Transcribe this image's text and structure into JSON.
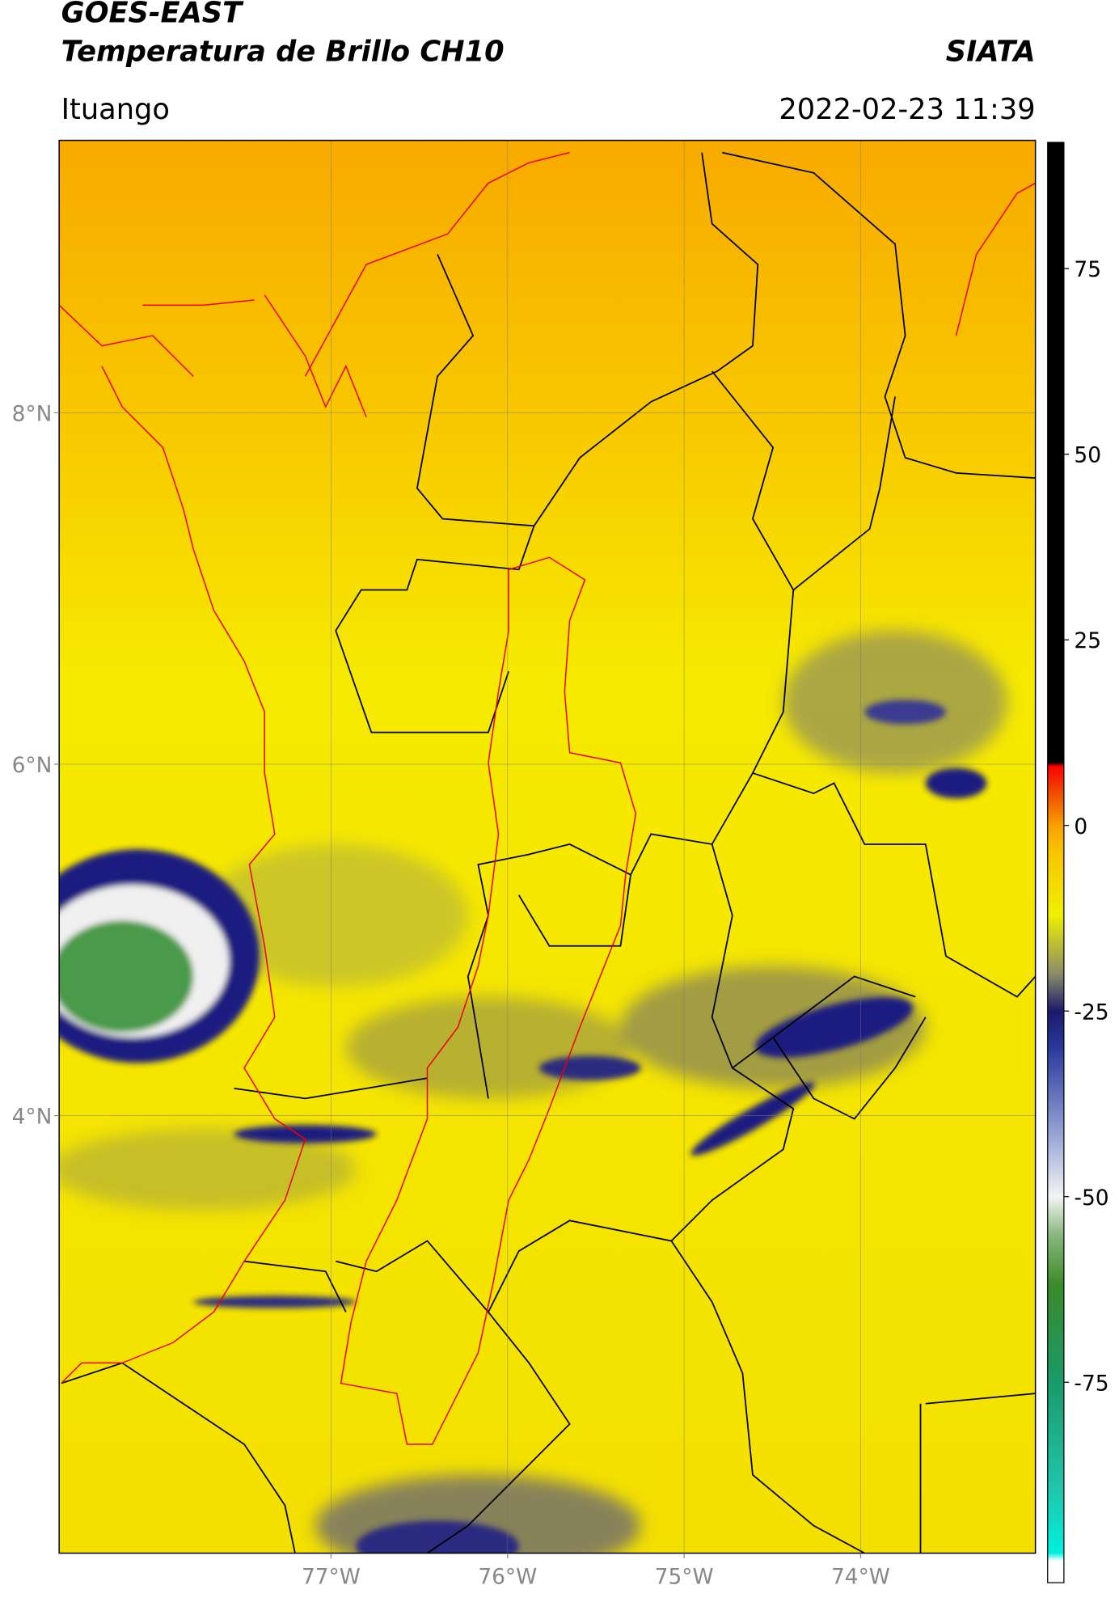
{
  "header": {
    "title": "GOES-EAST",
    "subtitle": "Temperatura de Brillo CH10",
    "brand": "SIATA",
    "region": "Ituango",
    "datetime": "2022-02-23 11:39"
  },
  "map": {
    "xlim": [
      -78.54,
      -73.01
    ],
    "ylim": [
      1.51,
      9.55
    ],
    "xticks": [
      {
        "value": -77,
        "label": "77°W"
      },
      {
        "value": -76,
        "label": "76°W"
      },
      {
        "value": -75,
        "label": "75°W"
      },
      {
        "value": -74,
        "label": "74°W"
      }
    ],
    "yticks": [
      {
        "value": 8,
        "label": "8°N"
      },
      {
        "value": 6,
        "label": "6°N"
      },
      {
        "value": 4,
        "label": "4°N"
      }
    ],
    "grid": true
  },
  "colorbar": {
    "lim": [
      -102,
      92
    ],
    "ticks": [
      75,
      50,
      25,
      0,
      -25,
      -50,
      -75
    ],
    "colorscale": [
      [
        -102,
        "#ffffff"
      ],
      [
        -99,
        "#ffffff"
      ],
      [
        -98,
        "#00f0e0"
      ],
      [
        -90,
        "#20c8b0"
      ],
      [
        -75,
        "#1a9a6a"
      ],
      [
        -62,
        "#3a8a2a"
      ],
      [
        -55,
        "#8ab880"
      ],
      [
        -50,
        "#f4f4f4"
      ],
      [
        -42,
        "#9aa8d8"
      ],
      [
        -30,
        "#2a3a9a"
      ],
      [
        -25,
        "#1a1a6a"
      ],
      [
        -20,
        "#8a8a6a"
      ],
      [
        -12,
        "#f0f000"
      ],
      [
        -3,
        "#f8c000"
      ],
      [
        0,
        "#f8a000"
      ],
      [
        5,
        "#f04000"
      ],
      [
        8,
        "#ff0000"
      ],
      [
        8.5,
        "#000000"
      ],
      [
        92,
        "#000000"
      ]
    ]
  }
}
